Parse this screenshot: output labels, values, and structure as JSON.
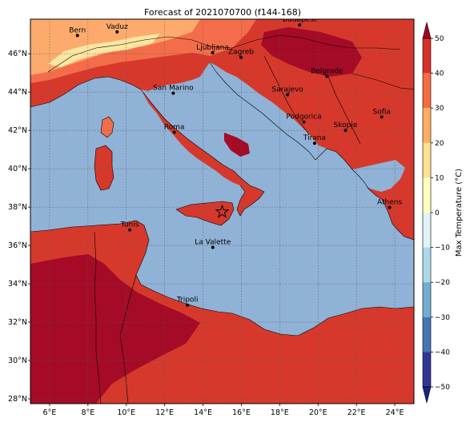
{
  "map": {
    "title": "Forecast of 2021070700 (f144-168)",
    "lon_labels": [
      "6°E",
      "8°E",
      "10°E",
      "12°E",
      "14°E",
      "16°E",
      "18°E",
      "20°E",
      "22°E",
      "24°E"
    ],
    "lat_labels": [
      "28°N",
      "30°N",
      "32°N",
      "34°N",
      "36°N",
      "38°N",
      "40°N",
      "42°N",
      "44°N",
      "46°N"
    ],
    "colors": {
      "sea": "#90b2d6",
      "land_hot": "#d6392c",
      "land_very_hot": "#a50b26",
      "land_warm": "#f36d4a",
      "land_mild": "#fcab6c",
      "land_cool": "#fde6a2",
      "border": "#000000",
      "grid": "#555555"
    },
    "cities": [
      {
        "name": "Bern",
        "lon": 7.45,
        "lat": 46.95
      },
      {
        "name": "Vaduz",
        "lon": 9.52,
        "lat": 47.14
      },
      {
        "name": "Budapest",
        "lon": 19.04,
        "lat": 47.5
      },
      {
        "name": "Ljubljana",
        "lon": 14.5,
        "lat": 46.05
      },
      {
        "name": "Zagreb",
        "lon": 15.98,
        "lat": 45.81
      },
      {
        "name": "San Marino",
        "lon": 12.45,
        "lat": 43.94
      },
      {
        "name": "Belgrade",
        "lon": 20.46,
        "lat": 44.82
      },
      {
        "name": "Sarajevo",
        "lon": 18.41,
        "lat": 43.86
      },
      {
        "name": "Sofia",
        "lon": 23.32,
        "lat": 42.7
      },
      {
        "name": "Roma",
        "lon": 12.5,
        "lat": 41.9
      },
      {
        "name": "Podgorica",
        "lon": 19.26,
        "lat": 42.44
      },
      {
        "name": "Skopje",
        "lon": 21.43,
        "lat": 42.0
      },
      {
        "name": "Tirana",
        "lon": 19.82,
        "lat": 41.33
      },
      {
        "name": "Athens",
        "lon": 23.73,
        "lat": 37.98
      },
      {
        "name": "Tunis",
        "lon": 10.18,
        "lat": 36.81
      },
      {
        "name": "La Valette",
        "lon": 14.51,
        "lat": 35.9
      },
      {
        "name": "Tripoli",
        "lon": 13.19,
        "lat": 32.89
      }
    ],
    "star_marker": {
      "lon": 15.0,
      "lat": 37.75
    }
  },
  "colorbar": {
    "label": "Max Temperature (°C)",
    "ticks": [
      "50",
      "40",
      "30",
      "20",
      "10",
      "0",
      "−10",
      "−20",
      "−30",
      "−40",
      "−50"
    ],
    "colors": [
      "#a50026",
      "#d73027",
      "#f46d43",
      "#fdae61",
      "#fee090",
      "#ffffbf",
      "#e0f3f8",
      "#abd9e9",
      "#74add1",
      "#4575b4",
      "#313695",
      "#1a237e"
    ]
  }
}
